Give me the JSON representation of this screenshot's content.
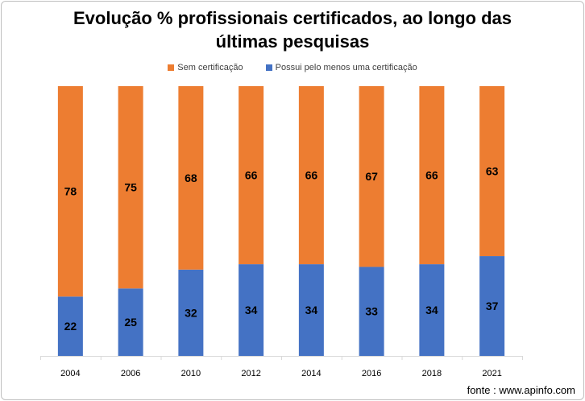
{
  "chart_data": {
    "type": "bar",
    "stacked": true,
    "title_line1": "Evolução % profissionais certificados, ao longo das",
    "title_line2": "últimas pesquisas",
    "categories": [
      "2004",
      "2006",
      "2010",
      "2012",
      "2014",
      "2016",
      "2018",
      "2021"
    ],
    "series": [
      {
        "name": "Possui pelo menos uma certificação",
        "color": "#4472c4",
        "values": [
          22,
          25,
          32,
          34,
          34,
          33,
          34,
          37
        ]
      },
      {
        "name": "Sem certificação",
        "color": "#ed7d31",
        "values": [
          78,
          75,
          68,
          66,
          66,
          67,
          66,
          63
        ]
      }
    ],
    "ylim": [
      0,
      100
    ],
    "grid": false,
    "legend_position": "top"
  },
  "legend": [
    {
      "label": "Sem certificação",
      "color": "#ed7d31"
    },
    {
      "label": "Possui pelo menos uma certificação",
      "color": "#4472c4"
    }
  ],
  "source": "fonte : www.apinfo.com"
}
